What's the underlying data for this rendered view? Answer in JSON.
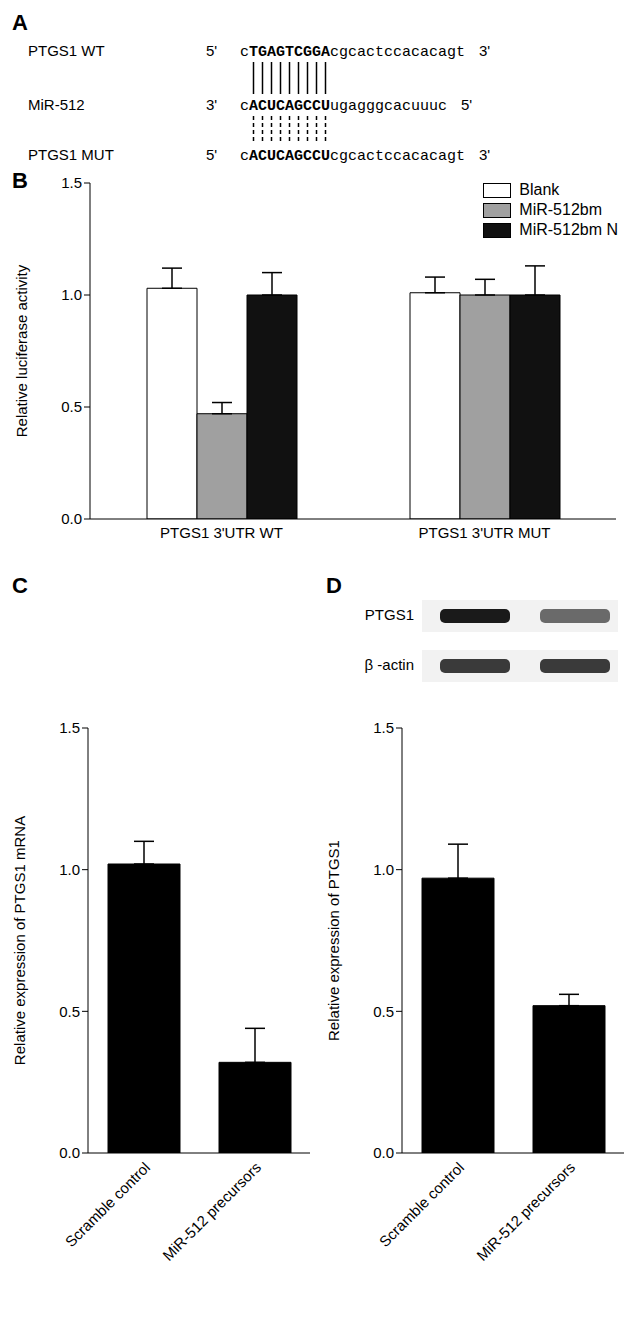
{
  "diagram": {
    "panel": "A",
    "rows": [
      {
        "label": "PTGS1 WT",
        "left": "5'",
        "sequence": "cTGAGTCGGAcgcactccacacagt",
        "right": "3'"
      },
      {
        "label": "MiR-512",
        "left": "3'",
        "sequence": "cACUCAGCCUugagggcacuuuc",
        "right": "5'"
      },
      {
        "label": "PTGS1 MUT",
        "left": "5'",
        "sequence": "cACUCAGCCUcgcactccacacagt",
        "right": "3'"
      }
    ]
  },
  "chart_data": [
    {
      "panel": "B",
      "type": "bar",
      "categories": [
        "PTGS1 3'UTR WT",
        "PTGS1 3'UTR MUT"
      ],
      "series": [
        {
          "name": "Blank",
          "color": "#ffffff",
          "values": [
            1.03,
            1.01
          ],
          "errors": [
            0.09,
            0.07
          ]
        },
        {
          "name": "MiR-512bm",
          "color": "#a0a0a0",
          "values": [
            0.47,
            1.0
          ],
          "errors": [
            0.05,
            0.07
          ]
        },
        {
          "name": "MiR-512bm N",
          "color": "#111111",
          "values": [
            1.0,
            1.0
          ],
          "errors": [
            0.1,
            0.13
          ]
        }
      ],
      "ylim": [
        0,
        1.5
      ],
      "yticks": [
        {
          "value": 0,
          "label": "0.0"
        },
        {
          "value": 0.5,
          "label": "0.5"
        },
        {
          "value": 1,
          "label": "1.0"
        },
        {
          "value": 1.5,
          "label": "1.5"
        }
      ],
      "y_label": "Relative luciferase activity",
      "legend": "upper right"
    },
    {
      "panel": "C",
      "type": "bar",
      "categories": [
        "Scramble control",
        "MiR-512 precursors"
      ],
      "values": [
        1.02,
        0.32
      ],
      "errors": [
        0.08,
        0.12
      ],
      "color": "#000000",
      "ylim": [
        0,
        1.5
      ],
      "yticks": [
        {
          "value": 0,
          "label": "0.0"
        },
        {
          "value": 0.5,
          "label": "0.5"
        },
        {
          "value": 1,
          "label": "1.0"
        },
        {
          "value": 1.5,
          "label": "1.5"
        }
      ],
      "y_label": "Relative expression of PTGS1 mRNA"
    },
    {
      "panel": "D",
      "type": "bar",
      "categories": [
        "Scramble control",
        "MiR-512 precursors"
      ],
      "values": [
        0.97,
        0.52
      ],
      "errors": [
        0.12,
        0.04
      ],
      "color": "#000000",
      "ylim": [
        0,
        1.5
      ],
      "yticks": [
        {
          "value": 0,
          "label": "0.0"
        },
        {
          "value": 0.5,
          "label": "0.5"
        },
        {
          "value": 1,
          "label": "1.0"
        },
        {
          "value": 1.5,
          "label": "1.5"
        }
      ],
      "y_label": "Relative expression of PTGS1",
      "blot": {
        "labels": [
          "PTGS1",
          "β -actin"
        ]
      }
    }
  ]
}
